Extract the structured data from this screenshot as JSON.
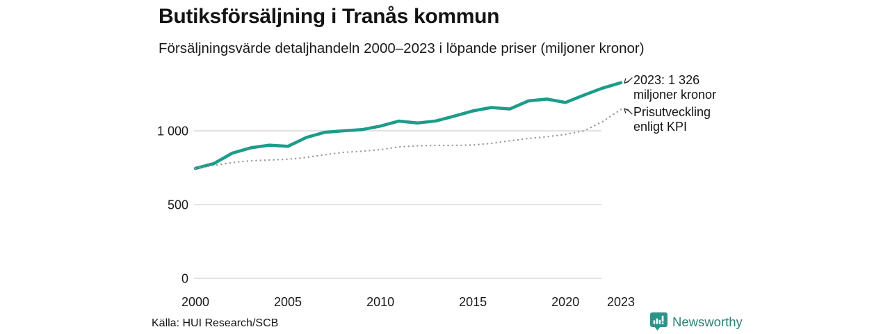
{
  "chart_data": {
    "type": "line",
    "title": "Butiksförsäljning i Tranås kommun",
    "subtitle": "Försäljningsvärde detaljhandeln 2000–2023 i löpande priser (miljoner kronor)",
    "xlabel": "",
    "ylabel": "",
    "x": [
      2000,
      2001,
      2002,
      2003,
      2004,
      2005,
      2006,
      2007,
      2008,
      2009,
      2010,
      2011,
      2012,
      2013,
      2014,
      2015,
      2016,
      2017,
      2018,
      2019,
      2020,
      2021,
      2022,
      2023
    ],
    "series": [
      {
        "name": "Försäljningsvärde i löpande priser",
        "style": "solid",
        "color": "#1d9c8b",
        "values": [
          745,
          778,
          849,
          885,
          903,
          895,
          955,
          990,
          1000,
          1008,
          1032,
          1066,
          1053,
          1067,
          1100,
          1135,
          1158,
          1148,
          1203,
          1215,
          1192,
          1242,
          1289,
          1326
        ]
      },
      {
        "name": "Prisutveckling enligt KPI",
        "style": "dotted",
        "color": "#9a9a9a",
        "values": [
          745,
          765,
          785,
          797,
          802,
          807,
          820,
          838,
          854,
          862,
          872,
          891,
          898,
          901,
          901,
          904,
          915,
          932,
          948,
          960,
          975,
          1000,
          1062,
          1145
        ]
      }
    ],
    "xlim": [
      2000,
      2023
    ],
    "ylim": [
      0,
      1400
    ],
    "grid": "horizontal",
    "legend": "none",
    "xticks": [
      {
        "year": 2000,
        "label": "2000"
      },
      {
        "year": 2005,
        "label": "2005"
      },
      {
        "year": 2010,
        "label": "2010"
      },
      {
        "year": 2015,
        "label": "2015"
      },
      {
        "year": 2020,
        "label": "2020"
      },
      {
        "year": 2023,
        "label": "2023"
      }
    ],
    "yticks": [
      {
        "value": 0,
        "label": "0"
      },
      {
        "value": 500,
        "label": "500"
      },
      {
        "value": 1000,
        "label": "1 000"
      }
    ],
    "annotations": [
      {
        "line1": "2023: 1 326",
        "line2": "miljoner kronor",
        "target_series": 0
      },
      {
        "line1": "Prisutveckling",
        "line2": "enligt KPI",
        "target_series": 1
      }
    ]
  },
  "footer": {
    "source": "Källa: HUI Research/SCB",
    "brand": "Newsworthy"
  },
  "colors": {
    "accent": "#1d9c8b",
    "kpi_dots": "#9a9a9a",
    "grid": "#d9d9d9",
    "text": "#1a1a1a",
    "arrow": "#333333",
    "brand_bubble": "#2e9389",
    "brand_text": "#2e7f79"
  }
}
